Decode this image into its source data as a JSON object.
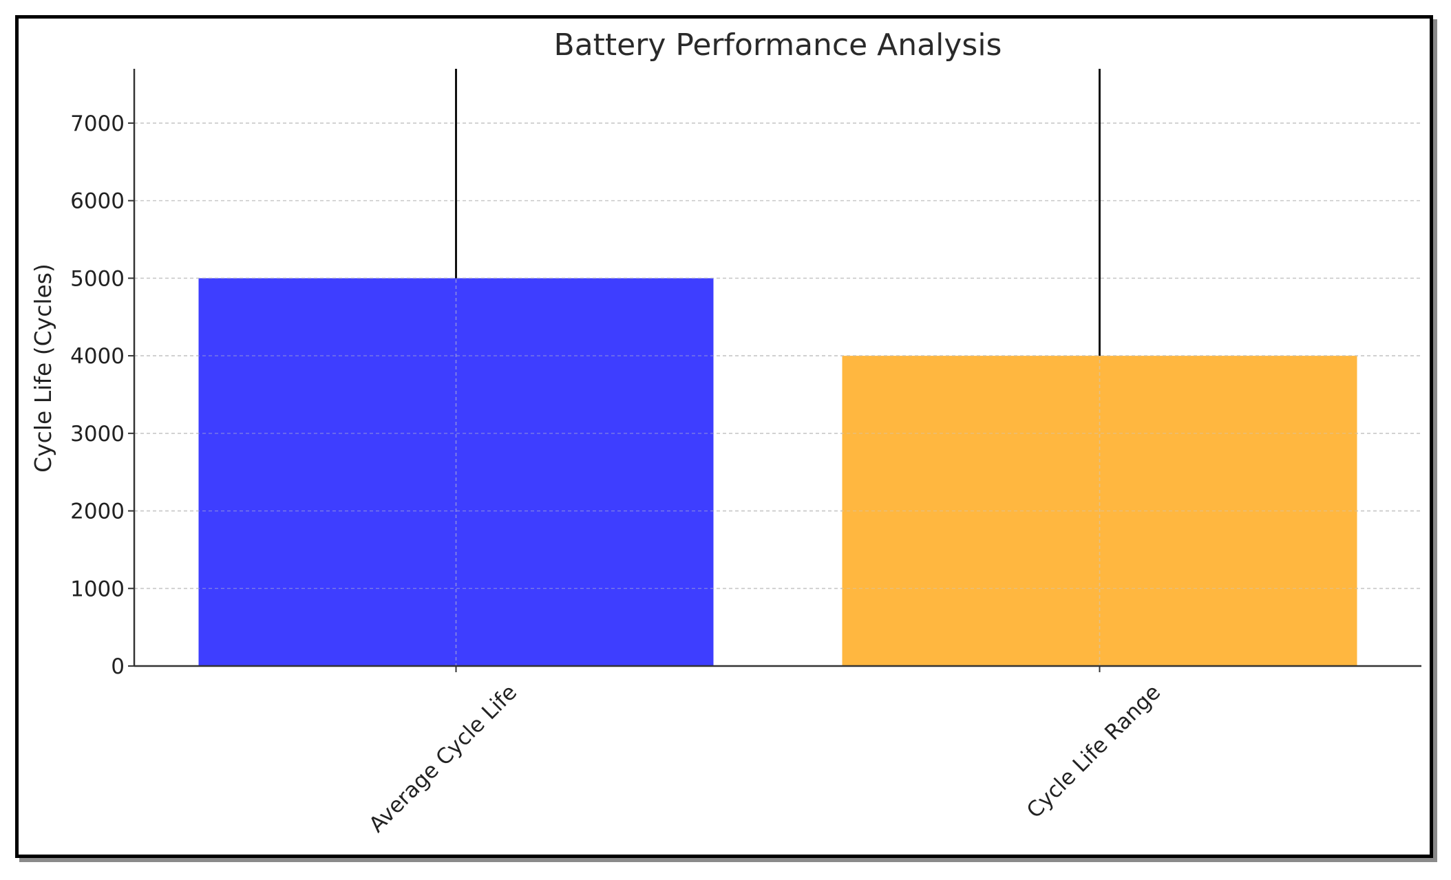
{
  "chart_data": {
    "type": "bar",
    "title": "Battery Performance Analysis",
    "xlabel": "",
    "ylabel": "Cycle Life (Cycles)",
    "categories": [
      "Average Cycle Life",
      "Cycle Life Range"
    ],
    "values": [
      5000,
      4000
    ],
    "error_upper": [
      3000,
      4000
    ],
    "colors": [
      "#3e3eff",
      "#ffb740"
    ],
    "ylim": [
      0,
      7700
    ],
    "yticks": [
      0,
      1000,
      2000,
      3000,
      4000,
      5000,
      6000,
      7000
    ],
    "ytick_labels": [
      "0",
      "1000",
      "2000",
      "3000",
      "4000",
      "5000",
      "6000",
      "7000"
    ],
    "xtick_rotation": -45,
    "grid": true
  }
}
